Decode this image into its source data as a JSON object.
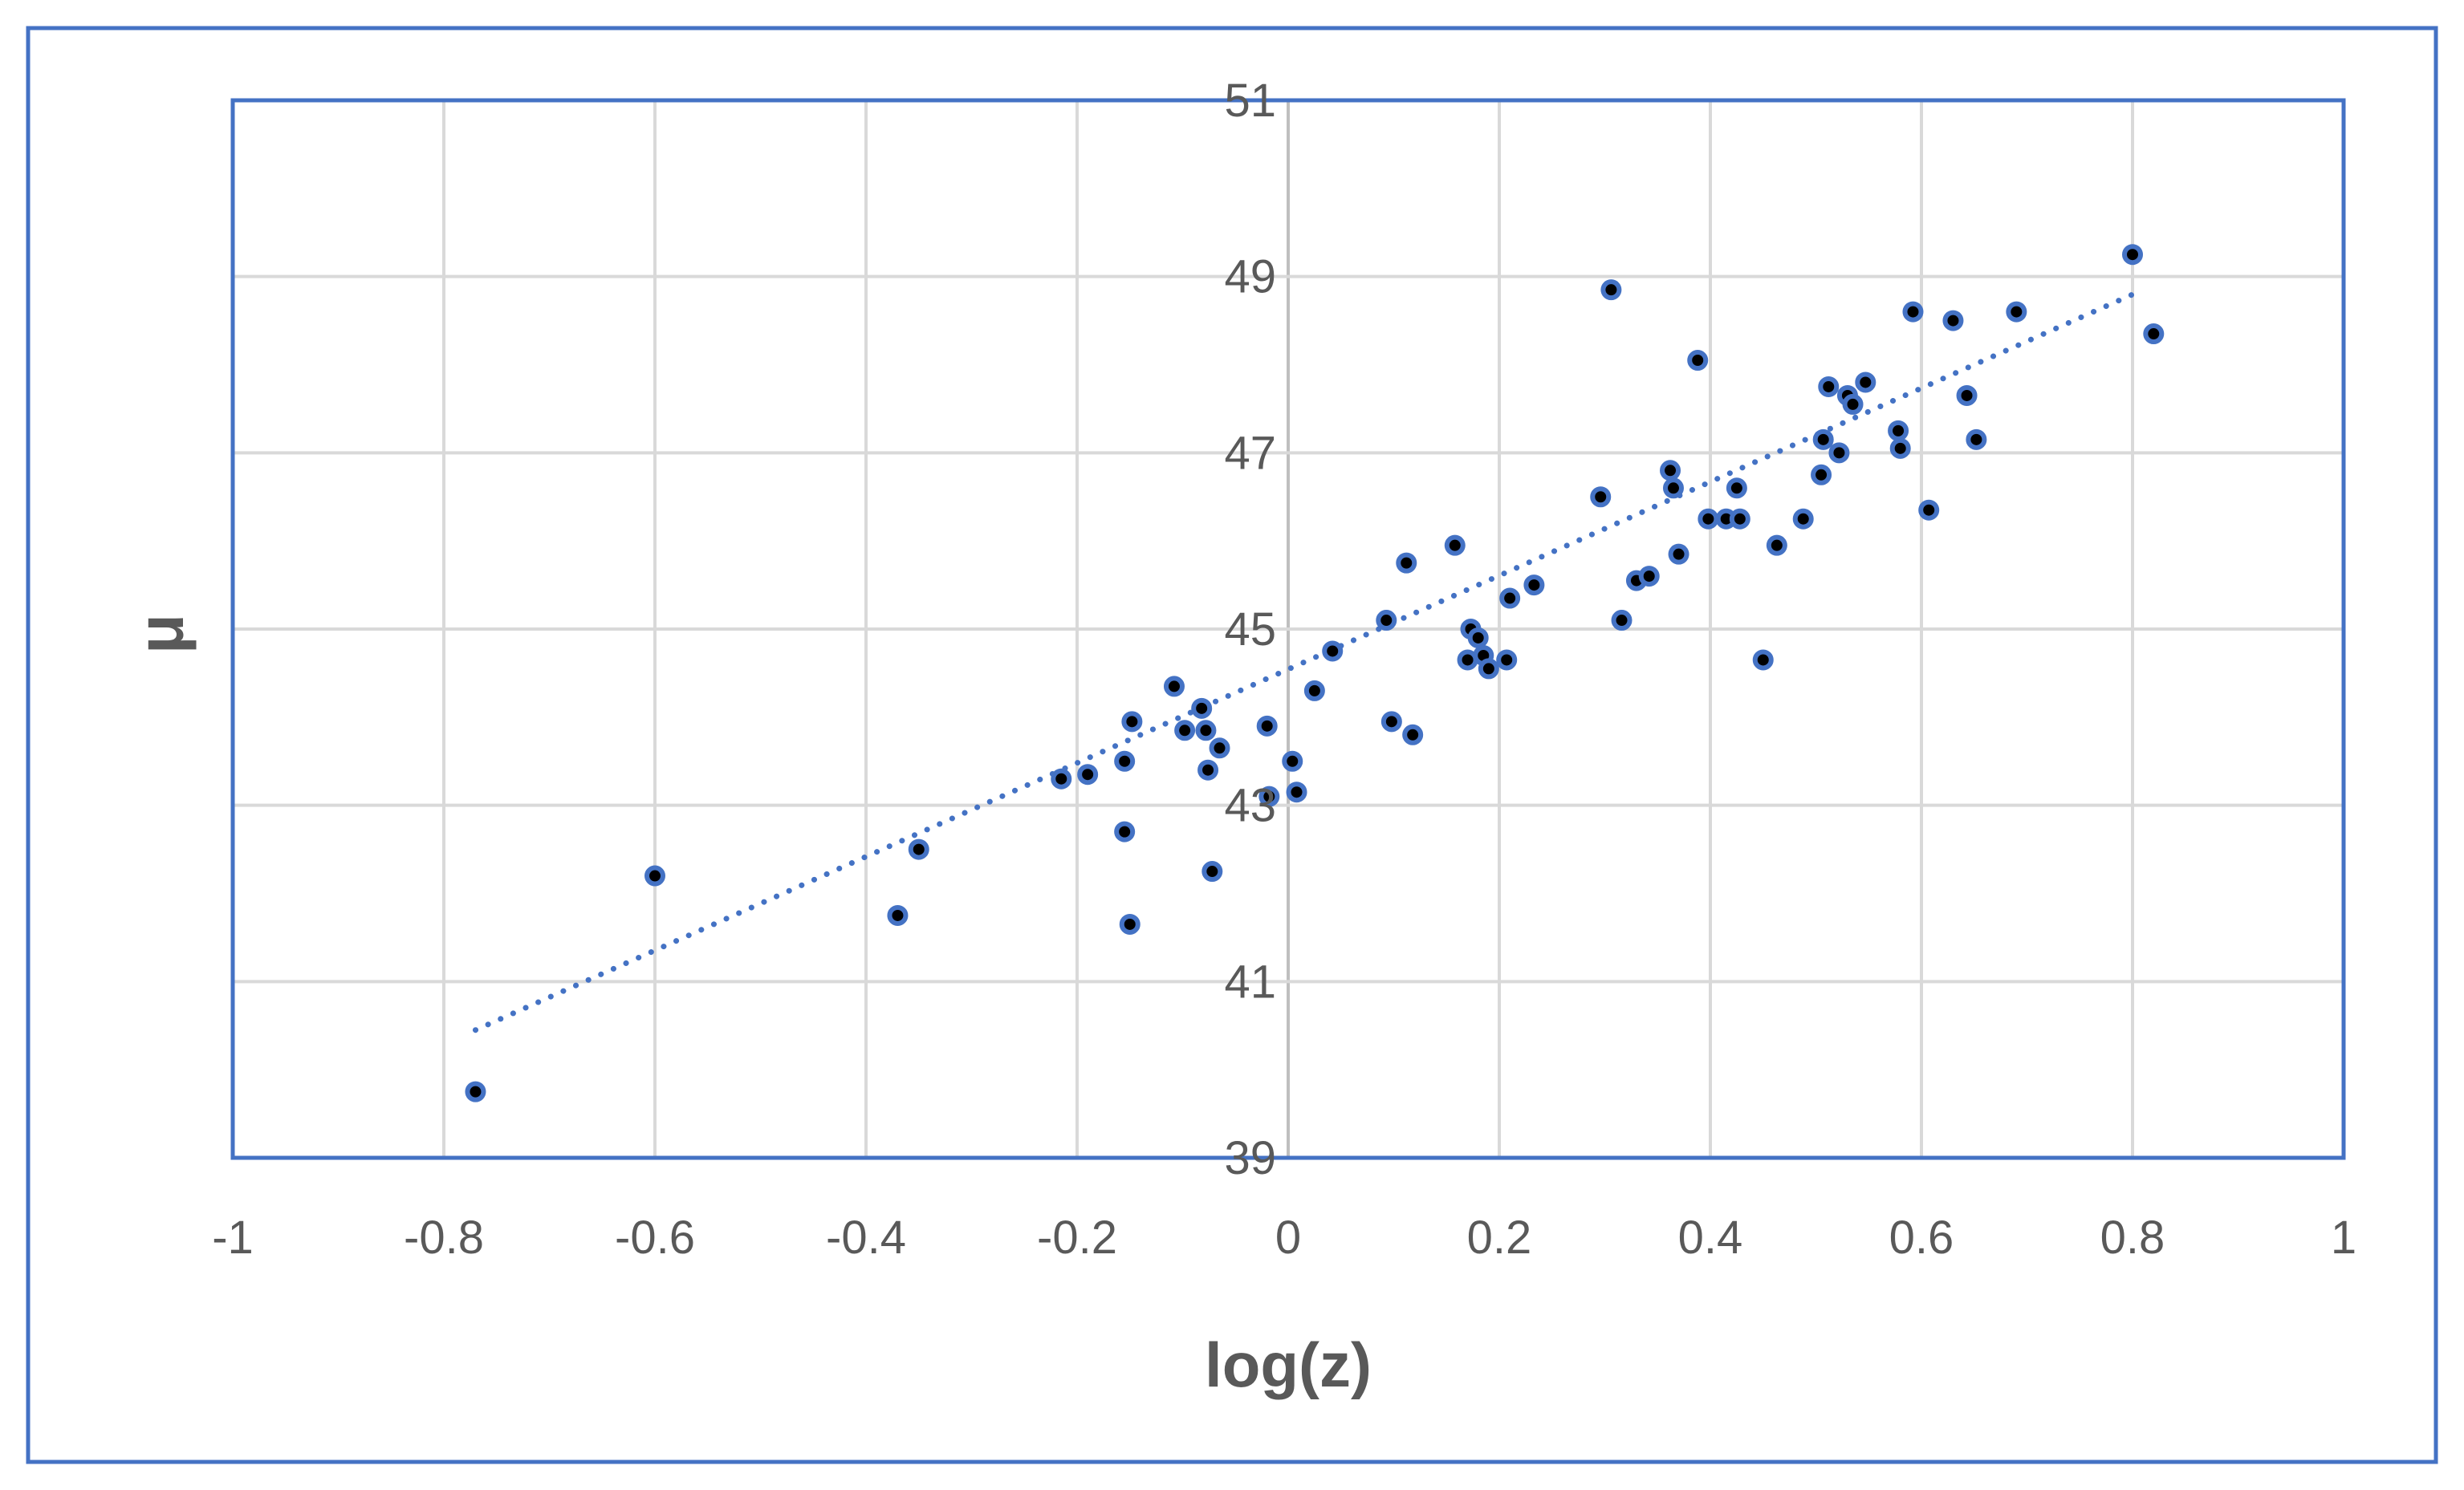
{
  "colors": {
    "frame": "#4472C4",
    "plot_border": "#4472C4",
    "grid": "#D9D9D9",
    "axis_zero": "#BFBFBF",
    "tick_text": "#595959",
    "axis_title": "#595959",
    "marker_fill": "#000000",
    "marker_ring": "#4472C4",
    "trendline": "#4472C4"
  },
  "chart_data": {
    "type": "scatter",
    "title": "",
    "xlabel": "log(z)",
    "ylabel": "μ",
    "xlim": [
      -1,
      1
    ],
    "ylim": [
      39,
      51
    ],
    "xticks": [
      -1,
      -0.8,
      -0.6,
      -0.4,
      -0.2,
      0,
      0.2,
      0.4,
      0.6,
      0.8,
      1
    ],
    "yticks": [
      39,
      41,
      43,
      45,
      47,
      49,
      51
    ],
    "xtick_labels": [
      "-1",
      "-0.8",
      "-0.6",
      "-0.4",
      "-0.2",
      "0",
      "0.2",
      "0.4",
      "0.6",
      "0.8",
      "1"
    ],
    "ytick_labels": [
      "39",
      "41",
      "43",
      "45",
      "47",
      "49",
      "51"
    ],
    "grid": true,
    "legend": "none",
    "trendline": {
      "style": "dotted",
      "x": [
        -0.77,
        0.81
      ],
      "y": [
        40.45,
        48.85
      ]
    },
    "series": [
      {
        "points": [
          [
            -0.77,
            39.75
          ],
          [
            -0.6,
            42.2
          ],
          [
            -0.37,
            41.75
          ],
          [
            -0.35,
            42.5
          ],
          [
            -0.215,
            43.3
          ],
          [
            -0.19,
            43.35
          ],
          [
            -0.155,
            43.5
          ],
          [
            -0.155,
            42.7
          ],
          [
            -0.15,
            41.65
          ],
          [
            -0.148,
            43.95
          ],
          [
            -0.108,
            44.35
          ],
          [
            -0.098,
            43.85
          ],
          [
            -0.082,
            44.1
          ],
          [
            -0.078,
            43.85
          ],
          [
            -0.076,
            43.4
          ],
          [
            -0.072,
            42.25
          ],
          [
            -0.065,
            43.65
          ],
          [
            -0.02,
            43.9
          ],
          [
            -0.018,
            43.1
          ],
          [
            0.004,
            43.5
          ],
          [
            0.008,
            43.15
          ],
          [
            0.025,
            44.3
          ],
          [
            0.042,
            44.75
          ],
          [
            0.093,
            45.1
          ],
          [
            0.098,
            43.95
          ],
          [
            0.112,
            45.75
          ],
          [
            0.118,
            43.8
          ],
          [
            0.158,
            45.95
          ],
          [
            0.17,
            44.65
          ],
          [
            0.173,
            45.0
          ],
          [
            0.18,
            44.9
          ],
          [
            0.185,
            44.7
          ],
          [
            0.19,
            44.55
          ],
          [
            0.207,
            44.65
          ],
          [
            0.21,
            45.35
          ],
          [
            0.233,
            45.5
          ],
          [
            0.296,
            46.5
          ],
          [
            0.306,
            48.85
          ],
          [
            0.316,
            45.1
          ],
          [
            0.33,
            45.55
          ],
          [
            0.342,
            45.6
          ],
          [
            0.362,
            46.8
          ],
          [
            0.365,
            46.6
          ],
          [
            0.37,
            45.85
          ],
          [
            0.388,
            48.05
          ],
          [
            0.398,
            46.25
          ],
          [
            0.415,
            46.25
          ],
          [
            0.425,
            46.6
          ],
          [
            0.428,
            46.25
          ],
          [
            0.45,
            44.65
          ],
          [
            0.463,
            45.95
          ],
          [
            0.488,
            46.25
          ],
          [
            0.505,
            46.75
          ],
          [
            0.507,
            47.15
          ],
          [
            0.512,
            47.75
          ],
          [
            0.522,
            47.0
          ],
          [
            0.53,
            47.65
          ],
          [
            0.535,
            47.55
          ],
          [
            0.547,
            47.8
          ],
          [
            0.578,
            47.25
          ],
          [
            0.58,
            47.05
          ],
          [
            0.592,
            48.6
          ],
          [
            0.607,
            46.35
          ],
          [
            0.63,
            48.5
          ],
          [
            0.643,
            47.65
          ],
          [
            0.652,
            47.15
          ],
          [
            0.69,
            48.6
          ],
          [
            0.8,
            49.25
          ],
          [
            0.82,
            48.35
          ]
        ]
      }
    ]
  }
}
